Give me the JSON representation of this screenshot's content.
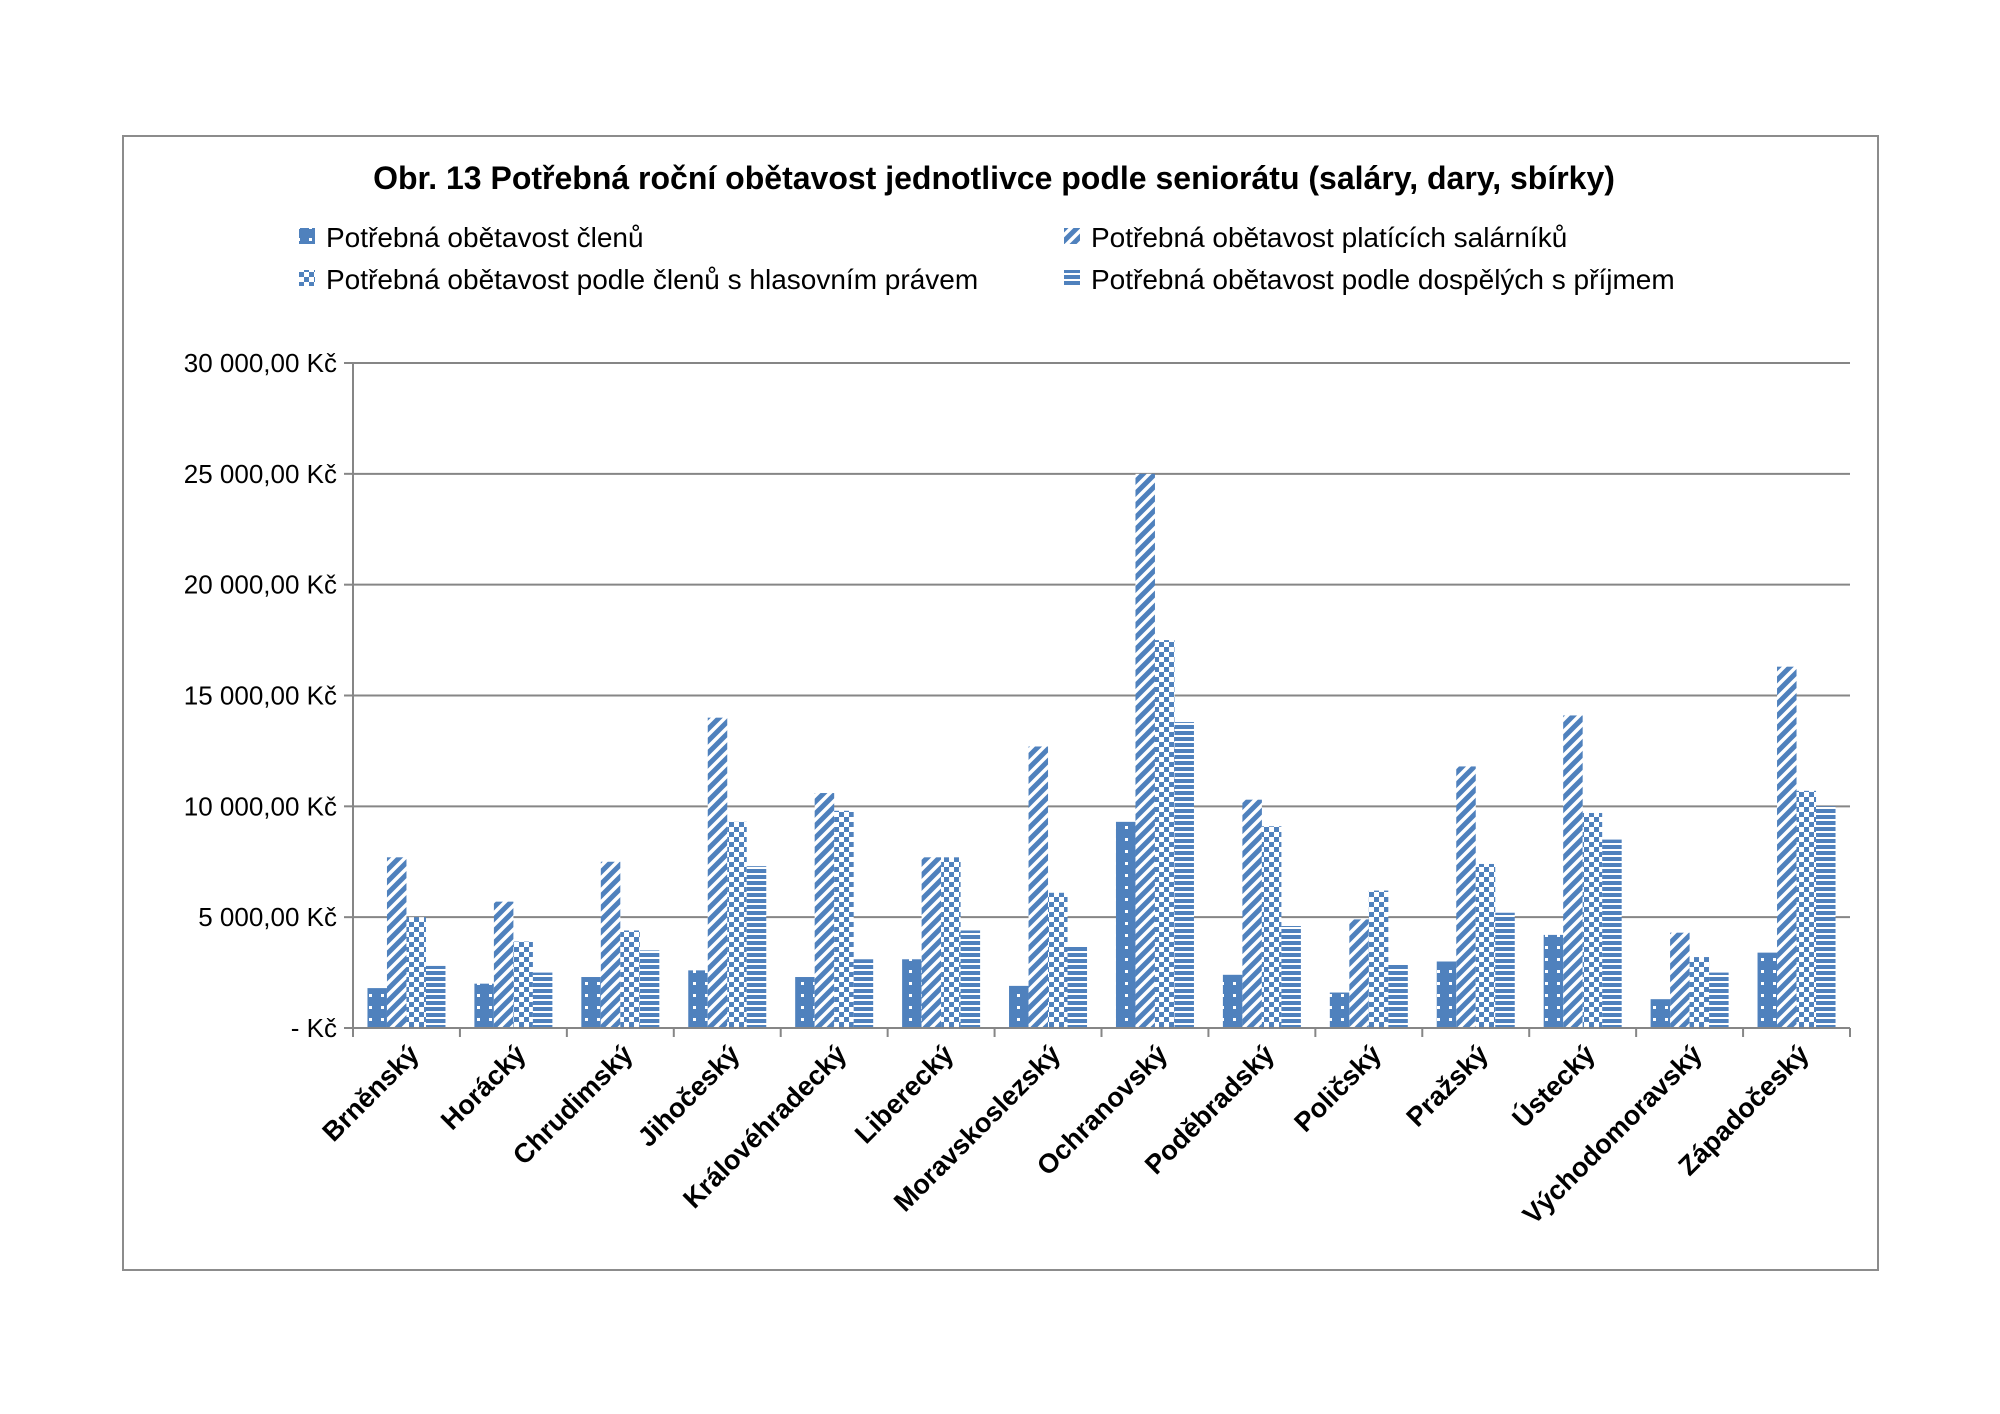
{
  "chart_data": {
    "type": "bar",
    "title": "Obr. 13 Potřebná roční obětavost jednotlivce podle seniorátu (saláry, dary, sbírky)",
    "xlabel": "",
    "ylabel": "",
    "ylim": [
      0,
      30000
    ],
    "grid": true,
    "legend_position": "top",
    "y_ticks": [
      0,
      5000,
      10000,
      15000,
      20000,
      25000,
      30000
    ],
    "y_tick_labels": [
      "-   Kč",
      "5 000,00 Kč",
      "10 000,00 Kč",
      "15 000,00 Kč",
      "20 000,00 Kč",
      "25 000,00 Kč",
      "30 000,00 Kč"
    ],
    "categories": [
      "Brněnský",
      "Horácký",
      "Chrudimský",
      "Jihočeský",
      "Královéhradecký",
      "Liberecký",
      "Moravskoslezský",
      "Ochranovský",
      "Poděbradský",
      "Poličský",
      "Pražský",
      "Ústecký",
      "Východomoravský",
      "Západočeský"
    ],
    "series": [
      {
        "name": "Potřebná obětavost členů",
        "pattern": "dots",
        "values": [
          1800,
          2000,
          2300,
          2600,
          2300,
          3100,
          1900,
          9300,
          2400,
          1600,
          3000,
          4200,
          1300,
          3400
        ]
      },
      {
        "name": "Potřebná obětavost platících salárníků",
        "pattern": "diagonal",
        "values": [
          7700,
          5700,
          7500,
          14000,
          10600,
          7700,
          12700,
          25000,
          10300,
          4900,
          11800,
          14100,
          4300,
          16300
        ]
      },
      {
        "name": "Potřebná obětavost podle členů s hlasovním právem",
        "pattern": "checker",
        "values": [
          5000,
          3900,
          4400,
          9300,
          9800,
          7700,
          6100,
          17500,
          9100,
          6200,
          7400,
          9700,
          3200,
          10700
        ]
      },
      {
        "name": "Potřebná obětavost podle dospělých s příjmem",
        "pattern": "horizontal",
        "values": [
          2800,
          2500,
          3500,
          7300,
          3100,
          4400,
          3700,
          13800,
          4600,
          2900,
          5200,
          8500,
          2500,
          10000
        ]
      }
    ],
    "colors": {
      "bar": "#4f81bd",
      "grid": "#868686",
      "axis": "#868686",
      "frame": "#8c8c8c"
    }
  }
}
